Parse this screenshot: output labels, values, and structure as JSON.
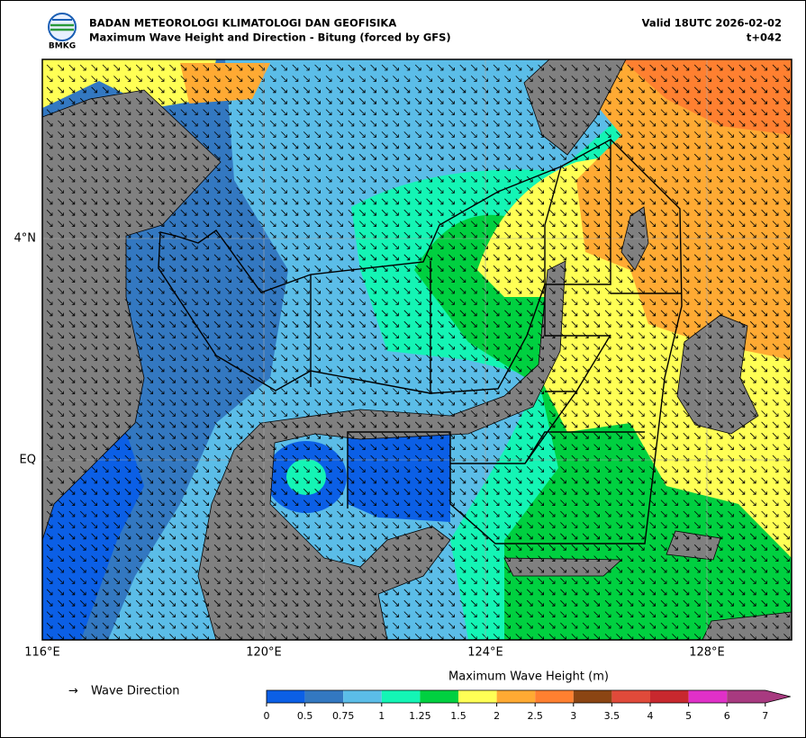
{
  "header": {
    "logo_text": "BMKG",
    "agency": "BADAN METEOROLOGI KLIMATOLOGI DAN GEOFISIKA",
    "product": "Maximum Wave Height and Direction - Bitung (forced by GFS)",
    "valid": "Valid 18UTC 2026-02-02",
    "lead": "t+042"
  },
  "map": {
    "lon_ticks": [
      "116°E",
      "120°E",
      "124°E",
      "128°E"
    ],
    "lat_ticks": [
      "4°N",
      "EQ"
    ]
  },
  "legend": {
    "arrow": "→",
    "label": "Wave Direction"
  },
  "colorbar": {
    "title": "Maximum Wave Height (m)",
    "bins": [
      0,
      0.5,
      0.75,
      1,
      1.25,
      1.5,
      2,
      2.5,
      3,
      3.5,
      4,
      5,
      6,
      7
    ],
    "colors": [
      "#0b5fe6",
      "#3378c1",
      "#5bbde8",
      "#14f5b5",
      "#00d040",
      "#ffff55",
      "#ffaa33",
      "#ff8030",
      "#8b4513",
      "#e04a3a",
      "#c8282e",
      "#e030c8",
      "#a83a80"
    ]
  }
}
